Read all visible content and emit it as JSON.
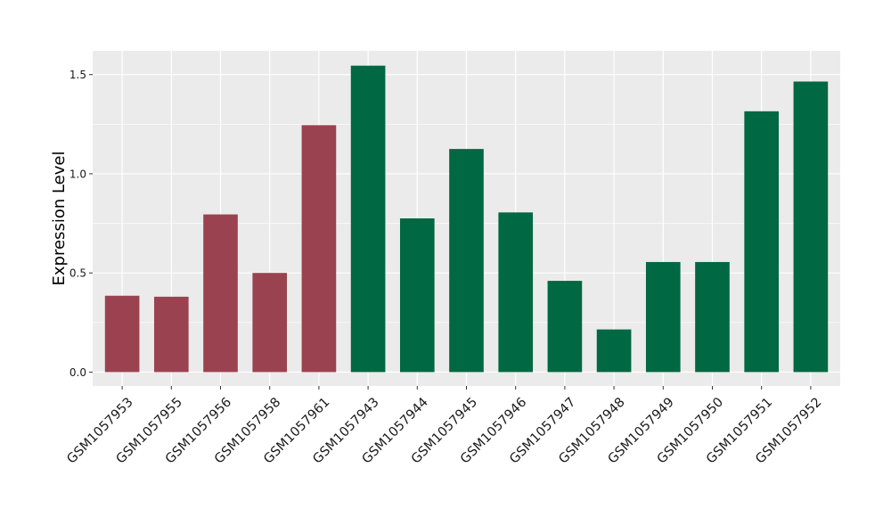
{
  "chart_data": {
    "type": "bar",
    "title": "",
    "xlabel": "",
    "ylabel": "Expression Level",
    "ylim": [
      -0.07,
      1.62
    ],
    "yticks": [
      0.0,
      0.5,
      1.0,
      1.5
    ],
    "ytick_labels": [
      "0.0",
      "0.5",
      "1.0",
      "1.5"
    ],
    "grid": true,
    "panel_background": "#EBEBEB",
    "gridline_color": "#FFFFFF",
    "group_colors": {
      "group_a": "#9B4250",
      "group_b": "#006843"
    },
    "categories": [
      "GSM1057953",
      "GSM1057955",
      "GSM1057956",
      "GSM1057958",
      "GSM1057961",
      "GSM1057943",
      "GSM1057944",
      "GSM1057945",
      "GSM1057946",
      "GSM1057947",
      "GSM1057948",
      "GSM1057949",
      "GSM1057950",
      "GSM1057951",
      "GSM1057952"
    ],
    "values": [
      0.385,
      0.38,
      0.795,
      0.5,
      1.245,
      1.545,
      0.775,
      1.125,
      0.805,
      0.46,
      0.215,
      0.555,
      0.555,
      1.315,
      1.465
    ],
    "groups": [
      "group_a",
      "group_a",
      "group_a",
      "group_a",
      "group_a",
      "group_b",
      "group_b",
      "group_b",
      "group_b",
      "group_b",
      "group_b",
      "group_b",
      "group_b",
      "group_b",
      "group_b"
    ]
  }
}
